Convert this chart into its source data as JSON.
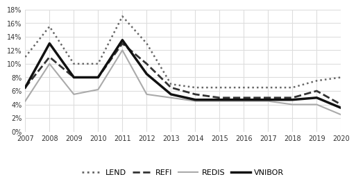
{
  "years": [
    2007,
    2008,
    2009,
    2010,
    2011,
    2012,
    2013,
    2014,
    2015,
    2016,
    2017,
    2018,
    2019,
    2020
  ],
  "LEND": [
    0.11,
    0.155,
    0.1,
    0.1,
    0.17,
    0.13,
    0.07,
    0.065,
    0.065,
    0.065,
    0.065,
    0.065,
    0.075,
    0.08
  ],
  "REFI": [
    0.065,
    0.11,
    0.08,
    0.08,
    0.13,
    0.1,
    0.065,
    0.055,
    0.05,
    0.05,
    0.05,
    0.05,
    0.06,
    0.04
  ],
  "REDIS": [
    0.045,
    0.1,
    0.055,
    0.062,
    0.12,
    0.055,
    0.05,
    0.045,
    0.045,
    0.045,
    0.045,
    0.04,
    0.04,
    0.025
  ],
  "VNIBOR": [
    0.065,
    0.13,
    0.08,
    0.08,
    0.135,
    0.085,
    0.055,
    0.047,
    0.047,
    0.047,
    0.047,
    0.047,
    0.05,
    0.035
  ],
  "ylim": [
    0,
    0.18
  ],
  "yticks": [
    0.0,
    0.02,
    0.04,
    0.06,
    0.08,
    0.1,
    0.12,
    0.14,
    0.16,
    0.18
  ],
  "colors": {
    "LEND": "#666666",
    "REFI": "#333333",
    "REDIS": "#aaaaaa",
    "VNIBOR": "#111111"
  },
  "linestyles": {
    "LEND": "dotted",
    "REFI": "dashed",
    "REDIS": "solid",
    "VNIBOR": "solid"
  },
  "linewidths": {
    "LEND": 1.8,
    "REFI": 2.0,
    "REDIS": 1.5,
    "VNIBOR": 2.5
  },
  "background_color": "#ffffff",
  "grid_color": "#dddddd",
  "tick_fontsize": 7,
  "legend_fontsize": 8
}
